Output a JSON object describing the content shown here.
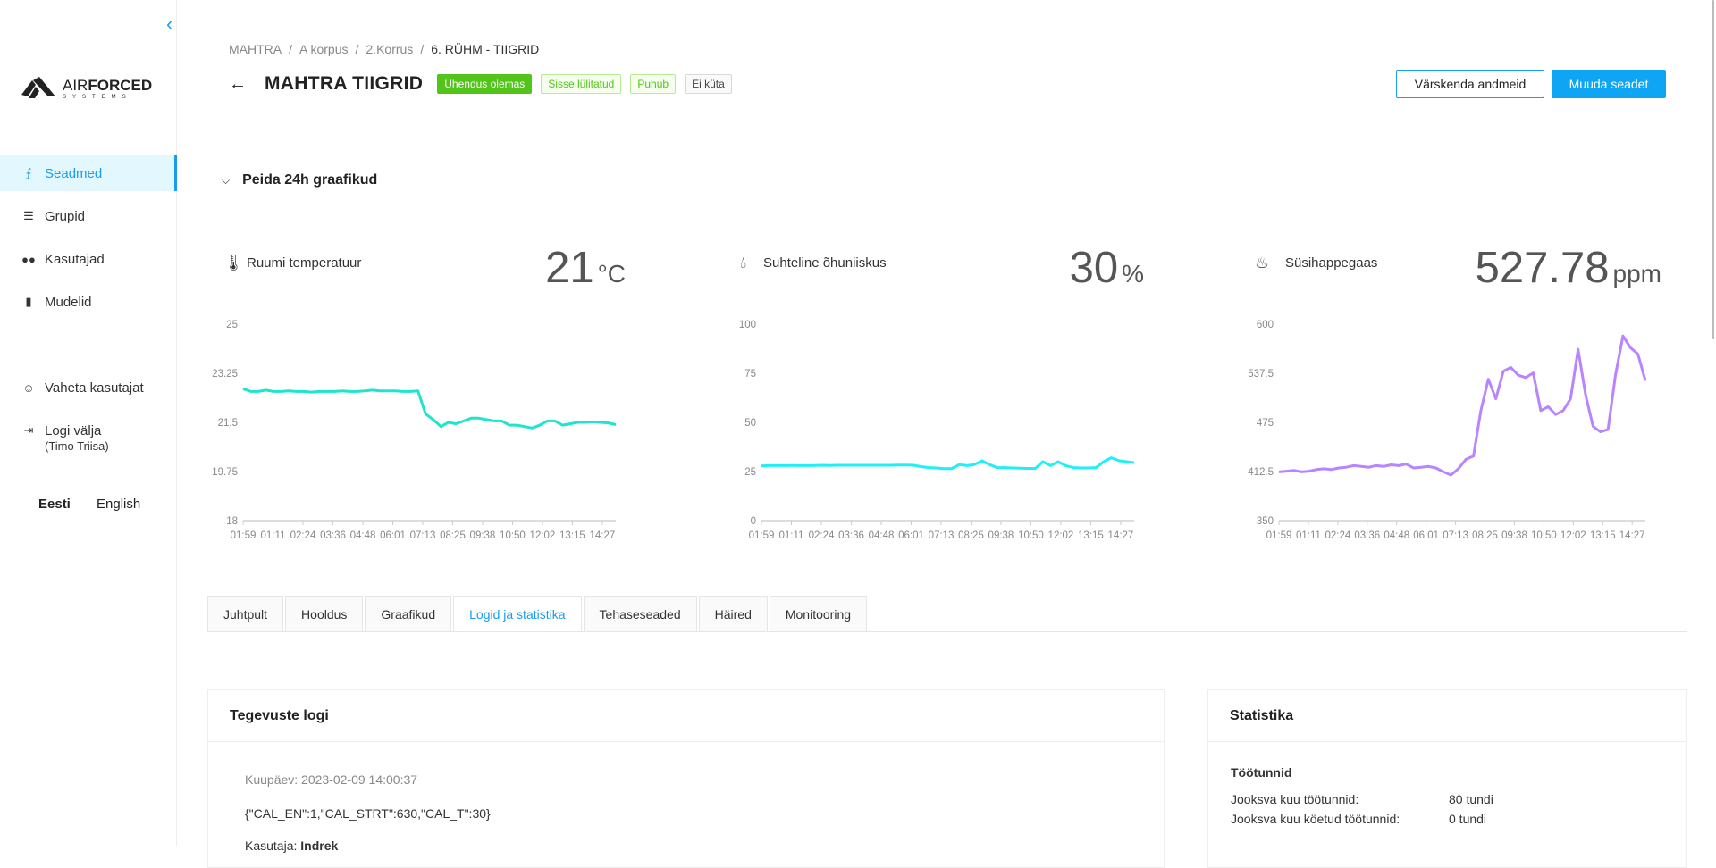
{
  "sidebar": {
    "logo": {
      "air": "AIR",
      "forced": "FORCED",
      "sub": "SYSTEMS"
    },
    "items": [
      {
        "label": "Seadmed",
        "icon": "device-icon",
        "active": true
      },
      {
        "label": "Grupid",
        "icon": "layers-icon"
      },
      {
        "label": "Kasutajad",
        "icon": "users-icon"
      },
      {
        "label": "Mudelid",
        "icon": "chip-icon"
      }
    ],
    "switch_user": "Vaheta kasutajat",
    "logout": "Logi välja",
    "logout_user": "(Timo Triisa)",
    "languages": [
      "Eesti",
      "English"
    ],
    "active_language": "Eesti"
  },
  "breadcrumb": [
    "MAHTRA",
    "A korpus",
    "2.Korrus",
    "6. RÜHM - TIIGRID"
  ],
  "header": {
    "title": "MAHTRA TIIGRID",
    "badges": [
      {
        "label": "Ühendus olemas",
        "color": "#52c41a",
        "filled": true
      },
      {
        "label": "Sisse lülitatud",
        "color": "#52c41a"
      },
      {
        "label": "Puhub",
        "color": "#52c41a"
      },
      {
        "label": "Ei küta",
        "color": "#555"
      }
    ],
    "refresh_label": "Värskenda andmeid",
    "edit_label": "Muuda seadet"
  },
  "charts_toggle": "Peida 24h graafikud",
  "colors": {
    "accent": "#1a9cf0",
    "temp": "#1fe5cf",
    "humidity": "#1ff0f8",
    "co2": "#b884ff"
  },
  "sensors": [
    {
      "label": "Ruumi temperatuur",
      "value": "21",
      "unit": "°C",
      "icon": "thermometer-icon"
    },
    {
      "label": "Suhteline õhuniiskus",
      "value": "30",
      "unit": "%",
      "icon": "humidity-drop-icon"
    },
    {
      "label": "Süsihappegaas",
      "value": "527.78",
      "unit": "ppm",
      "icon": "heat-waves-icon"
    }
  ],
  "chart_data": [
    {
      "type": "line",
      "xlabel": "",
      "ylabel": "",
      "ylim": [
        18,
        25
      ],
      "y_ticks": [
        "25",
        "23.25",
        "21.5",
        "19.75",
        "18"
      ],
      "x_ticks": [
        "01:59",
        "01:11",
        "02:24",
        "03:36",
        "04:48",
        "06:01",
        "07:13",
        "08:25",
        "09:38",
        "10:50",
        "12:02",
        "13:15",
        "14:27"
      ],
      "values": [
        22.7,
        22.6,
        22.6,
        22.65,
        22.6,
        22.6,
        22.62,
        22.6,
        22.6,
        22.58,
        22.6,
        22.6,
        22.6,
        22.62,
        22.6,
        22.6,
        22.62,
        22.65,
        22.62,
        22.62,
        22.62,
        22.6,
        22.6,
        22.62,
        21.8,
        21.6,
        21.35,
        21.5,
        21.45,
        21.55,
        21.65,
        21.65,
        21.6,
        21.55,
        21.55,
        21.4,
        21.4,
        21.35,
        21.3,
        21.4,
        21.55,
        21.55,
        21.4,
        21.45,
        21.5,
        21.5,
        21.52,
        21.5,
        21.48,
        21.42
      ]
    },
    {
      "type": "line",
      "xlabel": "",
      "ylabel": "",
      "ylim": [
        0,
        100
      ],
      "y_ticks": [
        "100",
        "75",
        "50",
        "25",
        "0"
      ],
      "x_ticks": [
        "01:59",
        "01:11",
        "02:24",
        "03:36",
        "04:48",
        "06:01",
        "07:13",
        "08:25",
        "09:38",
        "10:50",
        "12:02",
        "13:15",
        "14:27"
      ],
      "values": [
        27.8,
        28,
        28,
        28,
        28.1,
        28,
        28,
        28.1,
        28.2,
        28.1,
        28.2,
        28.2,
        28.2,
        28.2,
        28.2,
        28.2,
        28.2,
        28.2,
        28.3,
        28.3,
        28.2,
        27.5,
        27,
        26.8,
        26.5,
        26.5,
        28.5,
        28,
        28.5,
        30.5,
        28.5,
        27,
        27,
        26.8,
        26.7,
        26.6,
        26.6,
        30,
        28,
        30,
        28,
        27,
        26.8,
        26.8,
        27,
        30,
        32,
        30.5,
        30,
        29.5
      ]
    },
    {
      "type": "line",
      "xlabel": "",
      "ylabel": "",
      "ylim": [
        350,
        600
      ],
      "y_ticks": [
        "600",
        "537.5",
        "475",
        "412.5",
        "350"
      ],
      "x_ticks": [
        "01:59",
        "01:11",
        "02:24",
        "03:36",
        "04:48",
        "06:01",
        "07:13",
        "08:25",
        "09:38",
        "10:50",
        "12:02",
        "13:15",
        "14:27"
      ],
      "values": [
        412,
        413,
        414,
        412,
        413,
        415,
        416,
        415,
        417,
        418,
        420,
        419,
        418,
        420,
        419,
        421,
        420,
        422,
        417,
        418,
        419,
        417,
        412,
        408,
        416,
        428,
        432,
        490,
        530,
        505,
        540,
        545,
        535,
        532,
        538,
        490,
        495,
        485,
        490,
        505,
        568,
        510,
        470,
        463,
        466,
        535,
        585,
        570,
        562,
        528
      ]
    }
  ],
  "tabs": [
    {
      "label": "Juhtpult"
    },
    {
      "label": "Hooldus"
    },
    {
      "label": "Graafikud"
    },
    {
      "label": "Logid ja statistika",
      "active": true
    },
    {
      "label": "Tehaseseaded"
    },
    {
      "label": "Häired"
    },
    {
      "label": "Monitooring"
    }
  ],
  "log": {
    "title": "Tegevuste logi",
    "date": "Kuupäev: 2023-02-09 14:00:37",
    "payload": "{\"CAL_EN\":1,\"CAL_STRT\":630,\"CAL_T\":30}",
    "user_label": "Kasutaja:",
    "user": "Indrek"
  },
  "stats": {
    "title": "Statistika",
    "section": "Töötunnid",
    "rows": [
      {
        "label": "Jooksva kuu töötunnid:",
        "value": "80 tundi"
      },
      {
        "label": "Jooksva kuu köetud töötunnid:",
        "value": "0 tundi"
      }
    ]
  }
}
